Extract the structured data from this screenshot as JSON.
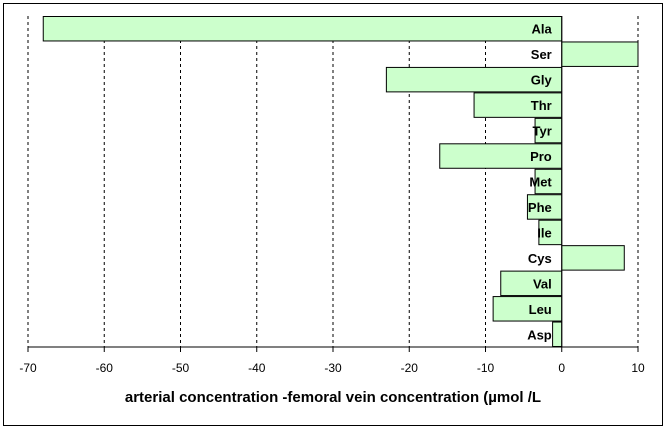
{
  "chart_data": {
    "type": "bar",
    "orientation": "horizontal",
    "categories": [
      "Ala",
      "Ser",
      "Gly",
      "Thr",
      "Tyr",
      "Pro",
      "Met",
      "Phe",
      "Ile",
      "Cys",
      "Val",
      "Leu",
      "Asp"
    ],
    "values": [
      -68,
      10,
      -23,
      -11.5,
      -3.5,
      -16,
      -3.5,
      -4.5,
      -3,
      8.2,
      -8,
      -9,
      -1.2
    ],
    "xlabel": "arterial concentration -femoral vein concentration (µmol /L",
    "xlim": [
      -70,
      10
    ],
    "xticks": [
      -70,
      -60,
      -50,
      -40,
      -30,
      -20,
      -10,
      0,
      10
    ],
    "grid": "vertical dashed",
    "colors": {
      "bar_fill": "#ccffcc",
      "bar_stroke": "#000000"
    }
  }
}
